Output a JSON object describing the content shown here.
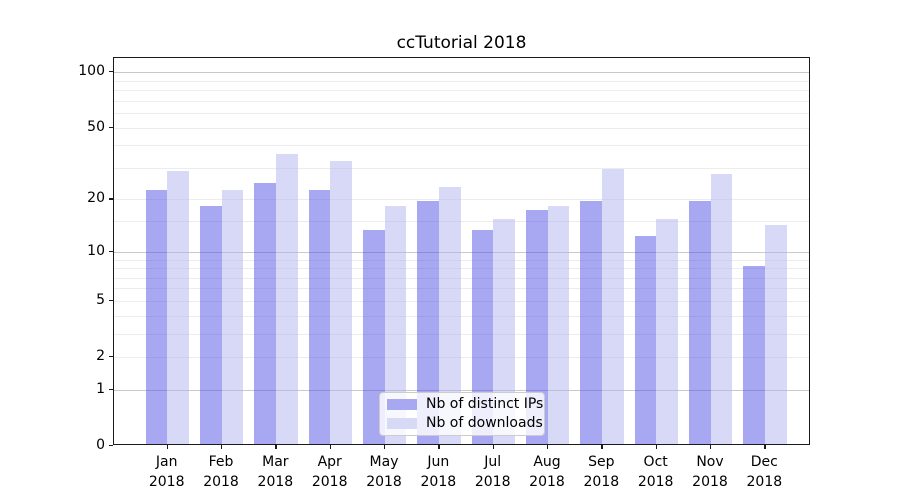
{
  "title": "ccTutorial 2018",
  "chart_data": {
    "type": "bar",
    "categories": [
      "Jan 2018",
      "Feb 2018",
      "Mar 2018",
      "Apr 2018",
      "May 2018",
      "Jun 2018",
      "Jul 2018",
      "Aug 2018",
      "Sep 2018",
      "Oct 2018",
      "Nov 2018",
      "Dec 2018"
    ],
    "series": [
      {
        "name": "Nb of distinct IPs",
        "color": "#a8a8f2",
        "fill": "rgba(81,81,229,0.5)",
        "values": [
          22,
          18,
          24,
          22,
          13,
          19,
          13,
          17,
          19,
          12,
          19,
          8
        ]
      },
      {
        "name": "Nb of downloads",
        "color": "#d8d8f7",
        "fill": "rgba(177,177,239,0.5)",
        "values": [
          28,
          22,
          35,
          32,
          18,
          23,
          15,
          18,
          29,
          15,
          27,
          14
        ]
      }
    ],
    "yscale": "log10(1+v)",
    "ylim": [
      0,
      118
    ],
    "yticks": [
      0,
      1,
      2,
      5,
      10,
      20,
      50,
      100
    ],
    "major_gridlines": [
      1,
      10,
      100
    ],
    "minor_gridlines": [
      2,
      3,
      4,
      5,
      6,
      7,
      8,
      9,
      15,
      20,
      30,
      40,
      50,
      60,
      70,
      80,
      90
    ],
    "grid": true,
    "legend_position": "lower center"
  }
}
